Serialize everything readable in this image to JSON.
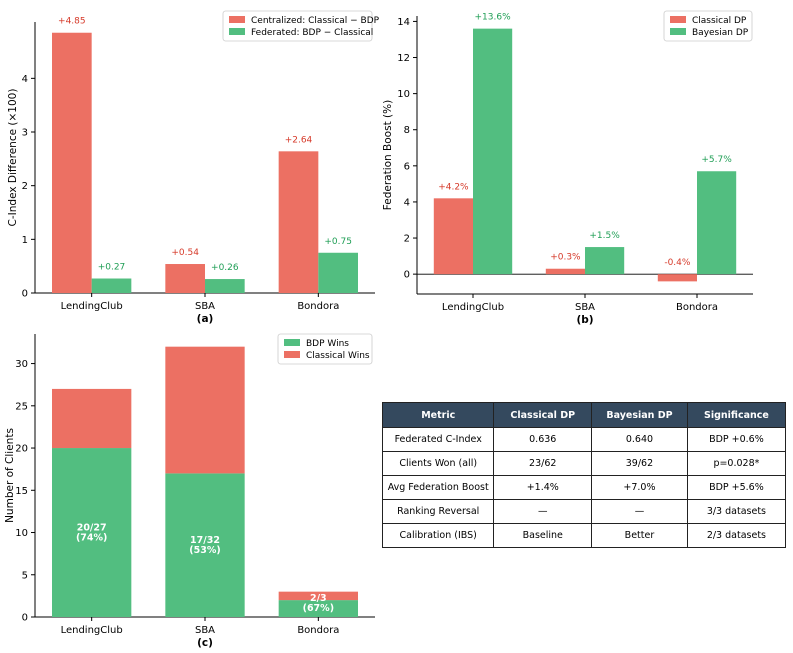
{
  "colors": {
    "classical": "#ec7063",
    "bayesian": "#52be80",
    "header": "#34495e"
  },
  "chart_data": [
    {
      "panel": "(a)",
      "type": "bar",
      "categories": [
        "LendingClub",
        "SBA",
        "Bondora"
      ],
      "series": [
        {
          "name": "Centralized: Classical − BDP",
          "values": [
            4.85,
            0.54,
            2.64
          ],
          "labels": [
            "+4.85",
            "+0.54",
            "+2.64"
          ]
        },
        {
          "name": "Federated: BDP − Classical",
          "values": [
            0.27,
            0.26,
            0.75
          ],
          "labels": [
            "+0.27",
            "+0.26",
            "+0.75"
          ]
        }
      ],
      "ylabel": "C-Index Difference (×100)",
      "xlabel": "",
      "ylim": [
        0,
        5.05
      ],
      "yticks": [
        0,
        1,
        2,
        3,
        4
      ],
      "legend": "top-right"
    },
    {
      "panel": "(b)",
      "type": "bar",
      "categories": [
        "LendingClub",
        "SBA",
        "Bondora"
      ],
      "series": [
        {
          "name": "Classical DP",
          "values": [
            4.2,
            0.3,
            -0.4
          ],
          "labels": [
            "+4.2%",
            "+0.3%",
            "-0.4%"
          ]
        },
        {
          "name": "Bayesian DP",
          "values": [
            13.6,
            1.5,
            5.7
          ],
          "labels": [
            "+13.6%",
            "+1.5%",
            "+5.7%"
          ]
        }
      ],
      "ylabel": "Federation Boost (%)",
      "xlabel": "",
      "ylim": [
        -1.1,
        14.3
      ],
      "yticks": [
        0,
        2,
        4,
        6,
        8,
        10,
        12,
        14
      ],
      "legend": "top-right"
    },
    {
      "panel": "(c)",
      "type": "stacked-bar",
      "categories": [
        "LendingClub",
        "SBA",
        "Bondora"
      ],
      "series": [
        {
          "name": "BDP Wins",
          "values": [
            20,
            17,
            2
          ]
        },
        {
          "name": "Classical Wins",
          "values": [
            7,
            15,
            1
          ]
        }
      ],
      "bar_labels": [
        [
          "20/27",
          "(74%)"
        ],
        [
          "17/32",
          "(53%)"
        ],
        [
          "2/3",
          "(67%)"
        ]
      ],
      "ylabel": "Number of Clients",
      "xlabel": "",
      "ylim": [
        0,
        33.5
      ],
      "yticks": [
        0,
        5,
        10,
        15,
        20,
        25,
        30
      ],
      "legend": "top-right"
    },
    {
      "panel": "table",
      "type": "table",
      "columns": [
        "Metric",
        "Classical DP",
        "Bayesian DP",
        "Significance"
      ],
      "rows": [
        [
          "Federated C-Index",
          "0.636",
          "0.640",
          "BDP +0.6%"
        ],
        [
          "Clients Won (all)",
          "23/62",
          "39/62",
          "p=0.028*"
        ],
        [
          "Avg Federation Boost",
          "+1.4%",
          "+7.0%",
          "BDP +5.6%"
        ],
        [
          "Ranking Reversal",
          "—",
          "—",
          "3/3 datasets"
        ],
        [
          "Calibration (IBS)",
          "Baseline",
          "Better",
          "2/3 datasets"
        ]
      ]
    }
  ]
}
